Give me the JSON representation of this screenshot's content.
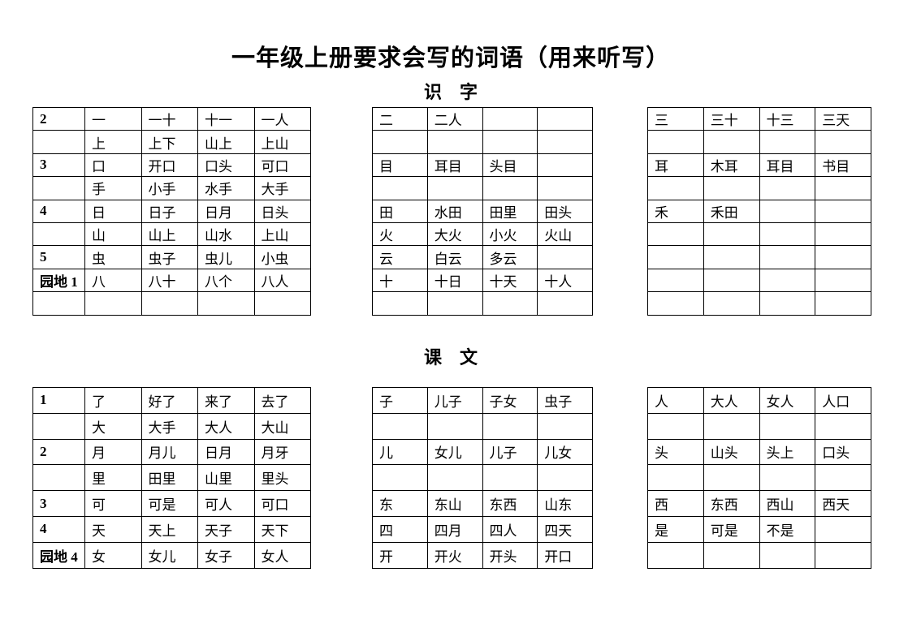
{
  "title": "一年级上册要求会写的词语（用来听写）",
  "colors": {
    "text": "#000000",
    "table_border": "#000000",
    "page_background": "#ffffff"
  },
  "sections": [
    {
      "heading": "识　字",
      "tables": [
        {
          "name": "shizi-left-table",
          "label_col": true,
          "rows": [
            [
              "2",
              "一",
              "一十",
              "十一",
              "一人"
            ],
            [
              "",
              "上",
              "上下",
              "山上",
              "上山"
            ],
            [
              "3",
              "口",
              "开口",
              "口头",
              "可口"
            ],
            [
              "",
              "手",
              "小手",
              "水手",
              "大手"
            ],
            [
              "4",
              "日",
              "日子",
              "日月",
              "日头"
            ],
            [
              "",
              "山",
              "山上",
              "山水",
              "上山"
            ],
            [
              "5",
              "虫",
              "虫子",
              "虫儿",
              "小虫"
            ],
            [
              "园地 1",
              "八",
              "八十",
              "八个",
              "八人"
            ],
            [
              "",
              "",
              "",
              "",
              ""
            ]
          ]
        },
        {
          "name": "shizi-middle-table",
          "label_col": false,
          "rows": [
            [
              "二",
              "二人",
              "",
              ""
            ],
            [
              "",
              "",
              "",
              ""
            ],
            [
              "目",
              "耳目",
              "头目",
              ""
            ],
            [
              "",
              "",
              "",
              ""
            ],
            [
              "田",
              "水田",
              "田里",
              "田头"
            ],
            [
              "火",
              "大火",
              "小火",
              "火山"
            ],
            [
              "云",
              "白云",
              "多云",
              ""
            ],
            [
              "十",
              "十日",
              "十天",
              "十人"
            ],
            [
              "",
              "",
              "",
              ""
            ]
          ]
        },
        {
          "name": "shizi-right-table",
          "label_col": false,
          "rows": [
            [
              "三",
              "三十",
              "十三",
              "三天"
            ],
            [
              "",
              "",
              "",
              ""
            ],
            [
              "耳",
              "木耳",
              "耳目",
              "书目"
            ],
            [
              "",
              "",
              "",
              ""
            ],
            [
              "禾",
              "禾田",
              "",
              ""
            ],
            [
              "",
              "",
              "",
              ""
            ],
            [
              "",
              "",
              "",
              ""
            ],
            [
              "",
              "",
              "",
              ""
            ],
            [
              "",
              "",
              "",
              ""
            ]
          ]
        }
      ]
    },
    {
      "heading": "课　文",
      "tables": [
        {
          "name": "kewen-left-table",
          "label_col": true,
          "rows": [
            [
              "1",
              "了",
              "好了",
              "来了",
              "去了"
            ],
            [
              "",
              "大",
              "大手",
              "大人",
              "大山"
            ],
            [
              "2",
              "月",
              "月儿",
              "日月",
              "月牙"
            ],
            [
              "",
              "里",
              "田里",
              "山里",
              "里头"
            ],
            [
              "3",
              "可",
              "可是",
              "可人",
              "可口"
            ],
            [
              "4",
              "天",
              "天上",
              "天子",
              "天下"
            ],
            [
              "园地 4",
              "女",
              "女儿",
              "女子",
              "女人"
            ]
          ]
        },
        {
          "name": "kewen-middle-table",
          "label_col": false,
          "rows": [
            [
              "子",
              "儿子",
              "子女",
              "虫子"
            ],
            [
              "",
              "",
              "",
              ""
            ],
            [
              "儿",
              "女儿",
              "儿子",
              "儿女"
            ],
            [
              "",
              "",
              "",
              ""
            ],
            [
              "东",
              "东山",
              "东西",
              "山东"
            ],
            [
              "四",
              "四月",
              "四人",
              "四天"
            ],
            [
              "开",
              "开火",
              "开头",
              "开口"
            ]
          ]
        },
        {
          "name": "kewen-right-table",
          "label_col": false,
          "rows": [
            [
              "人",
              "大人",
              "女人",
              "人口"
            ],
            [
              "",
              "",
              "",
              ""
            ],
            [
              "头",
              "山头",
              "头上",
              "口头"
            ],
            [
              "",
              "",
              "",
              ""
            ],
            [
              "西",
              "东西",
              "西山",
              "西天"
            ],
            [
              "是",
              "可是",
              "不是",
              ""
            ],
            [
              "",
              "",
              "",
              ""
            ]
          ]
        }
      ]
    }
  ]
}
